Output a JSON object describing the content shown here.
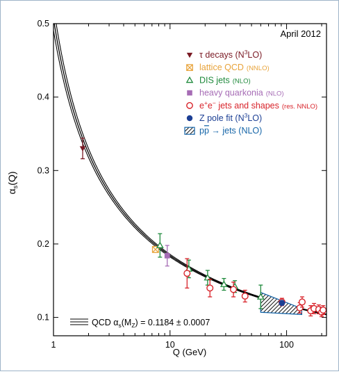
{
  "chart_data": {
    "type": "scatter",
    "annotation_date": "April 2012",
    "xlabel": "Q (GeV)",
    "ylabel": "αs(Q)",
    "xscale": "log",
    "xlim": [
      1,
      220
    ],
    "ylim": [
      0.075,
      0.5
    ],
    "x_ticks": [
      1,
      10,
      100
    ],
    "y_ticks": [
      0.1,
      0.2,
      0.3,
      0.4,
      0.5
    ],
    "curve": {
      "label": "QCD αs(Mz) = 0.1184 ± 0.0007",
      "label_parts": [
        "QCD α",
        "s",
        "(M",
        "Z",
        ") = 0.1184 ± 0.0007"
      ],
      "central": 0.1184,
      "uncertainty": 0.0007,
      "mz": 91.19
    },
    "legend": [
      {
        "id": "tau",
        "marker": "triangle-down",
        "color": "#7a1a24",
        "main": "τ decays (N³LO)",
        "main_parts": [
          "τ decays (N",
          "3",
          "LO)"
        ],
        "small": ""
      },
      {
        "id": "lattice",
        "marker": "square-x",
        "color": "#e8a33a",
        "main": "lattice QCD",
        "small": "(NNLO)"
      },
      {
        "id": "dis",
        "marker": "triangle-up",
        "color": "#1f8a3c",
        "main": "DIS jets",
        "small": "(NLO)"
      },
      {
        "id": "hq",
        "marker": "square",
        "color": "#a66cb5",
        "main": "heavy quarkonia",
        "small": "(NLO)"
      },
      {
        "id": "ee",
        "marker": "circle-open",
        "color": "#d8232a",
        "main": "e⁺e⁻ jets and shapes",
        "main_parts": [
          "e",
          "+",
          "e",
          "−",
          " jets and shapes"
        ],
        "small": "(res. NNLO)"
      },
      {
        "id": "z",
        "marker": "circle",
        "color": "#1c3f94",
        "main": "Z pole fit (N³LO)",
        "main_parts": [
          "Z pole fit (N",
          "3",
          "LO)"
        ],
        "small": ""
      },
      {
        "id": "pp",
        "marker": "hatch",
        "color": "#1565a8",
        "main": "pp̄ → jets (NLO)",
        "main_parts": [
          "p",
          "p",
          " → jets (NLO)"
        ],
        "small": ""
      }
    ],
    "series": [
      {
        "name": "τ decays (N³LO)",
        "marker": "triangle-down",
        "color": "#7a1a24",
        "points": [
          {
            "x": 1.78,
            "y": 0.33,
            "err": 0.014
          }
        ]
      },
      {
        "name": "lattice QCD (NNLO)",
        "marker": "square-x",
        "color": "#e8a33a",
        "points": [
          {
            "x": 7.5,
            "y": 0.1925,
            "err": 0.004
          }
        ]
      },
      {
        "name": "DIS jets (NLO)",
        "marker": "triangle-up",
        "color": "#1f8a3c",
        "points": [
          {
            "x": 8.2,
            "y": 0.198,
            "err": 0.016
          },
          {
            "x": 14.5,
            "y": 0.166,
            "err": 0.012
          },
          {
            "x": 21,
            "y": 0.154,
            "err": 0.01
          },
          {
            "x": 29,
            "y": 0.145,
            "err": 0.008
          },
          {
            "x": 36,
            "y": 0.142,
            "err": 0.008
          },
          {
            "x": 60,
            "y": 0.128,
            "err": 0.016
          }
        ]
      },
      {
        "name": "heavy quarkonia (NLO)",
        "marker": "square",
        "color": "#a66cb5",
        "points": [
          {
            "x": 9.46,
            "y": 0.184,
            "err": 0.014
          }
        ]
      },
      {
        "name": "e⁺e⁻ jets and shapes (res. NNLO)",
        "marker": "circle-open",
        "color": "#d8232a",
        "points": [
          {
            "x": 14,
            "y": 0.16,
            "err": 0.02
          },
          {
            "x": 22,
            "y": 0.14,
            "err": 0.012
          },
          {
            "x": 35,
            "y": 0.138,
            "err": 0.01
          },
          {
            "x": 44,
            "y": 0.129,
            "err": 0.008
          },
          {
            "x": 91.2,
            "y": 0.121,
            "err": 0.005
          },
          {
            "x": 130,
            "y": 0.113,
            "err": 0.007
          },
          {
            "x": 136,
            "y": 0.121,
            "err": 0.007
          },
          {
            "x": 161,
            "y": 0.109,
            "err": 0.007
          },
          {
            "x": 172,
            "y": 0.112,
            "err": 0.007
          },
          {
            "x": 189,
            "y": 0.111,
            "err": 0.006
          },
          {
            "x": 200,
            "y": 0.107,
            "err": 0.006
          },
          {
            "x": 206,
            "y": 0.11,
            "err": 0.006
          }
        ]
      },
      {
        "name": "Z pole fit (N³LO)",
        "marker": "circle",
        "color": "#1c3f94",
        "points": [
          {
            "x": 91.2,
            "y": 0.1197,
            "err": 0.0028
          }
        ]
      },
      {
        "name": "pp̄ → jets (NLO)",
        "marker": "hatch",
        "color": "#1565a8",
        "band": {
          "x0": 60,
          "x1": 135,
          "y_low_at_x0": 0.107,
          "y_high_at_x0": 0.134,
          "y_low_at_x1": 0.104,
          "y_high_at_x1": 0.112
        }
      }
    ]
  }
}
